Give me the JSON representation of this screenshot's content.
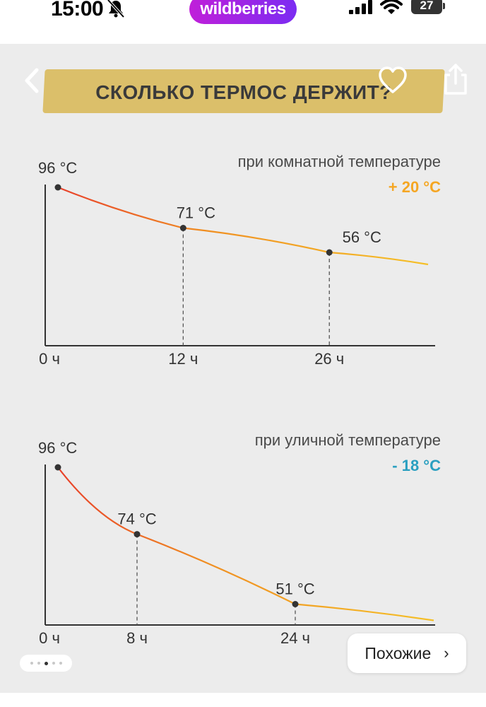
{
  "status_bar": {
    "time": "15:00",
    "app_logo": "wildberries",
    "battery": "27"
  },
  "header": {
    "title": "СКОЛЬКО ТЕРМОС ДЕРЖИТ?"
  },
  "colors": {
    "warm": "#f5a623",
    "cold": "#2a9fc0",
    "line_start": "#e8402a",
    "line_end": "#f5c027",
    "title_bg": "#dbbf6a"
  },
  "chart_data": [
    {
      "type": "line",
      "subtitle": "при комнатной температуре",
      "condition": "+ 20 °C",
      "x_unit": "ч",
      "points": [
        {
          "x": 0,
          "y": 96,
          "label": "96 °C"
        },
        {
          "x": 12,
          "y": 71,
          "label": "71 °C"
        },
        {
          "x": 26,
          "y": 56,
          "label": "56 °C"
        }
      ],
      "x_ticks": [
        "0 ч",
        "12 ч",
        "26 ч"
      ]
    },
    {
      "type": "line",
      "subtitle": "при уличной температуре",
      "condition": "- 18 °C",
      "x_unit": "ч",
      "points": [
        {
          "x": 0,
          "y": 96,
          "label": "96 °C"
        },
        {
          "x": 8,
          "y": 74,
          "label": "74 °C"
        },
        {
          "x": 24,
          "y": 51,
          "label": "51 °C"
        }
      ],
      "x_ticks": [
        "0 ч",
        "8 ч",
        "24 ч"
      ]
    }
  ],
  "similar_button": {
    "label": "Похожие",
    "arrow": "›"
  },
  "carousel": {
    "count": 5,
    "active_index": 2
  }
}
